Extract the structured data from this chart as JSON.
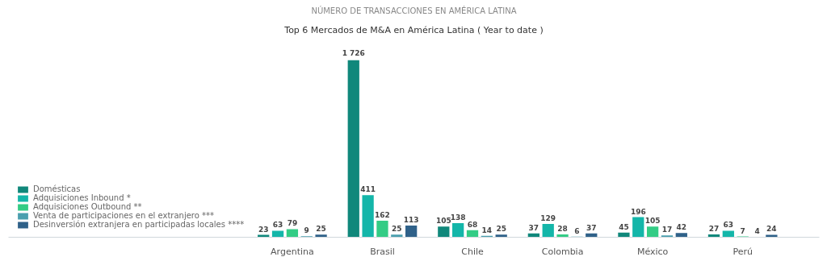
{
  "chart_data": {
    "type": "bar",
    "title": "NÚMERO DE TRANSACCIONES EN AMÉRICA LATINA",
    "subtitle": "Top 6 Mercados de M&A en América Latina ( Year to date )",
    "categories": [
      "Argentina",
      "Brasil",
      "Chile",
      "Colombia",
      "México",
      "Perú"
    ],
    "grid": false,
    "legend": "bottom left",
    "tick_labels": "x",
    "series": [
      {
        "name": "Domésticas",
        "color": "#10887b",
        "values": [
          23,
          1726,
          105,
          37,
          45,
          27
        ],
        "value_labels": [
          "23",
          "1 726",
          "105",
          "37",
          "45",
          "27"
        ]
      },
      {
        "name": "Adquisiciones Inbound *",
        "color": "#14b6a9",
        "values": [
          63,
          411,
          138,
          129,
          196,
          63
        ],
        "value_labels": [
          "63",
          "411",
          "138",
          "129",
          "196",
          "63"
        ]
      },
      {
        "name": "Adquisiciones Outbound **",
        "color": "#33cc85",
        "values": [
          79,
          162,
          68,
          28,
          105,
          7
        ],
        "value_labels": [
          "79",
          "162",
          "68",
          "28",
          "105",
          "7"
        ]
      },
      {
        "name": "Venta de participaciones en el extranjero ***",
        "color": "#4a9fae",
        "values": [
          9,
          25,
          14,
          6,
          17,
          4
        ],
        "value_labels": [
          "9",
          "25",
          "14",
          "6",
          "17",
          "4"
        ]
      },
      {
        "name": "Desinversión extranjera en participadas locales ****",
        "color": "#2f6189",
        "values": [
          25,
          113,
          25,
          37,
          42,
          24
        ],
        "value_labels": [
          "25",
          "113",
          "25",
          "37",
          "42",
          "24"
        ]
      }
    ]
  }
}
